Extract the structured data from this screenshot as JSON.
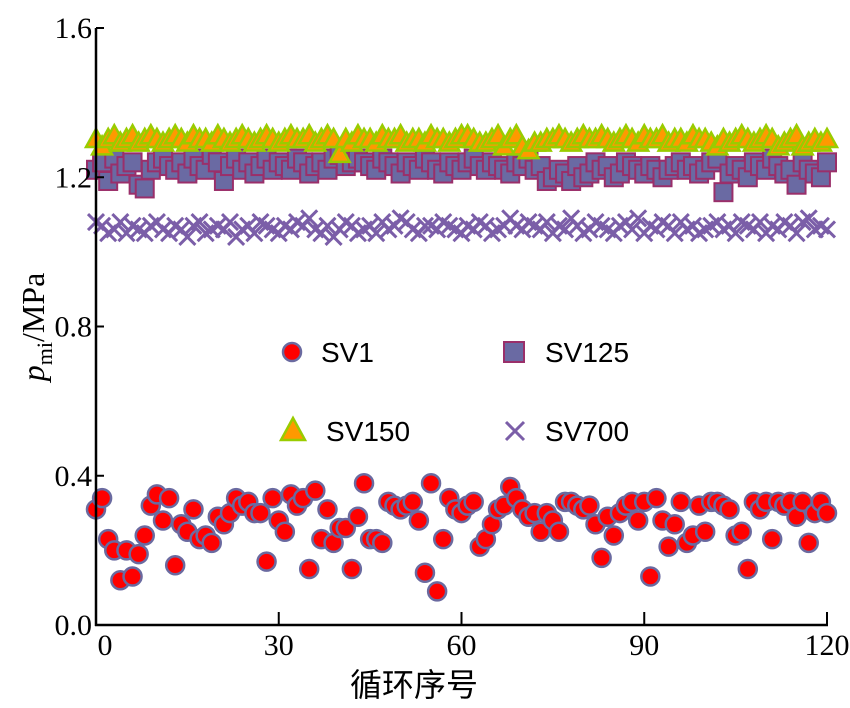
{
  "chart_data": {
    "type": "scatter",
    "title": "",
    "xlabel": "循环序号",
    "ylabel": {
      "symbol": "p",
      "subscript": "mi",
      "unit": "/MPa"
    },
    "xlim": [
      0,
      120
    ],
    "ylim": [
      0.0,
      1.6
    ],
    "xticks": [
      0,
      30,
      60,
      90,
      120
    ],
    "xtick_labels": [
      "0",
      "30",
      "60",
      "90",
      "120"
    ],
    "yticks": [
      0.0,
      0.4,
      0.8,
      1.2,
      1.6
    ],
    "ytick_labels": [
      "0.0",
      "0.4",
      "0.8",
      "1.2",
      "1.6"
    ],
    "grid": false,
    "legend_position": "center",
    "series": [
      {
        "name": "SV1",
        "marker": "circle",
        "fill": "#ff0000",
        "stroke": "#6a6aa0",
        "values": [
          0.31,
          0.34,
          0.23,
          0.2,
          0.12,
          0.2,
          0.13,
          0.19,
          0.24,
          0.32,
          0.35,
          0.28,
          0.34,
          0.16,
          0.27,
          0.25,
          0.31,
          0.23,
          0.24,
          0.22,
          0.29,
          0.27,
          0.3,
          0.34,
          0.32,
          0.33,
          0.3,
          0.3,
          0.17,
          0.34,
          0.28,
          0.25,
          0.35,
          0.32,
          0.34,
          0.15,
          0.36,
          0.23,
          0.31,
          0.22,
          0.26,
          0.26,
          0.15,
          0.29,
          0.38,
          0.23,
          0.23,
          0.22,
          0.33,
          0.32,
          0.31,
          0.32,
          0.33,
          0.28,
          0.14,
          0.38,
          0.09,
          0.23,
          0.34,
          0.31,
          0.3,
          0.32,
          0.33,
          0.21,
          0.23,
          0.27,
          0.31,
          0.32,
          0.37,
          0.34,
          0.31,
          0.29,
          0.3,
          0.25,
          0.3,
          0.28,
          0.25,
          0.33,
          0.33,
          0.32,
          0.31,
          0.32,
          0.27,
          0.18,
          0.29,
          0.24,
          0.3,
          0.32,
          0.33,
          0.28,
          0.33,
          0.13,
          0.34,
          0.28,
          0.21,
          0.27,
          0.33,
          0.22,
          0.24,
          0.32,
          0.25,
          0.33,
          0.33,
          0.32,
          0.31,
          0.24,
          0.25,
          0.15,
          0.33,
          0.31,
          0.33,
          0.23,
          0.33,
          0.32,
          0.33,
          0.29,
          0.33,
          0.22,
          0.3,
          0.33,
          0.3
        ]
      },
      {
        "name": "SV125",
        "marker": "square",
        "fill": "#6a6aa3",
        "stroke": "#9a2f6a",
        "values": [
          1.22,
          1.24,
          1.19,
          1.25,
          1.21,
          1.23,
          1.24,
          1.18,
          1.17,
          1.22,
          1.24,
          1.25,
          1.23,
          1.22,
          1.24,
          1.21,
          1.25,
          1.23,
          1.22,
          1.26,
          1.24,
          1.19,
          1.23,
          1.25,
          1.22,
          1.24,
          1.21,
          1.23,
          1.25,
          1.22,
          1.24,
          1.23,
          1.22,
          1.25,
          1.24,
          1.21,
          1.23,
          1.24,
          1.22,
          1.25,
          1.26,
          1.23,
          1.24,
          1.25,
          1.24,
          1.23,
          1.22,
          1.25,
          1.24,
          1.23,
          1.21,
          1.24,
          1.23,
          1.22,
          1.25,
          1.24,
          1.22,
          1.21,
          1.24,
          1.23,
          1.22,
          1.24,
          1.25,
          1.23,
          1.22,
          1.24,
          1.23,
          1.22,
          1.21,
          1.24,
          1.23,
          1.25,
          1.22,
          1.23,
          1.19,
          1.2,
          1.22,
          1.21,
          1.19,
          1.23,
          1.2,
          1.21,
          1.24,
          1.22,
          1.23,
          1.2,
          1.21,
          1.24,
          1.23,
          1.22,
          1.21,
          1.23,
          1.22,
          1.2,
          1.22,
          1.23,
          1.24,
          1.22,
          1.23,
          1.21,
          1.22,
          1.24,
          1.25,
          1.16,
          1.21,
          1.23,
          1.22,
          1.2,
          1.24,
          1.23,
          1.22,
          1.25,
          1.23,
          1.21,
          1.22,
          1.18,
          1.24,
          1.22,
          1.21,
          1.2,
          1.24
        ]
      },
      {
        "name": "SV150",
        "marker": "triangle",
        "fill": "#ff9900",
        "stroke": "#99cc00",
        "values": [
          1.3,
          1.28,
          1.3,
          1.31,
          1.29,
          1.3,
          1.31,
          1.29,
          1.3,
          1.31,
          1.3,
          1.29,
          1.3,
          1.31,
          1.3,
          1.29,
          1.31,
          1.3,
          1.3,
          1.29,
          1.31,
          1.3,
          1.29,
          1.3,
          1.31,
          1.3,
          1.29,
          1.3,
          1.31,
          1.3,
          1.29,
          1.3,
          1.31,
          1.3,
          1.3,
          1.31,
          1.29,
          1.3,
          1.31,
          1.3,
          1.26,
          1.3,
          1.29,
          1.31,
          1.3,
          1.3,
          1.29,
          1.31,
          1.3,
          1.3,
          1.31,
          1.29,
          1.3,
          1.3,
          1.29,
          1.31,
          1.3,
          1.3,
          1.29,
          1.3,
          1.31,
          1.31,
          1.3,
          1.29,
          1.29,
          1.3,
          1.31,
          1.28,
          1.3,
          1.31,
          1.28,
          1.27,
          1.29,
          1.29,
          1.3,
          1.3,
          1.31,
          1.3,
          1.29,
          1.3,
          1.31,
          1.3,
          1.3,
          1.31,
          1.3,
          1.29,
          1.3,
          1.31,
          1.3,
          1.29,
          1.31,
          1.3,
          1.3,
          1.31,
          1.29,
          1.3,
          1.3,
          1.29,
          1.31,
          1.3,
          1.3,
          1.29,
          1.28,
          1.3,
          1.29,
          1.3,
          1.31,
          1.3,
          1.29,
          1.3,
          1.31,
          1.3,
          1.28,
          1.29,
          1.3,
          1.31,
          1.28,
          1.29,
          1.3,
          1.29,
          1.3
        ]
      },
      {
        "name": "SV700",
        "marker": "x",
        "fill": "none",
        "stroke": "#7b5ea8",
        "values": [
          1.08,
          1.07,
          1.05,
          1.06,
          1.08,
          1.05,
          1.07,
          1.06,
          1.05,
          1.07,
          1.08,
          1.06,
          1.05,
          1.07,
          1.06,
          1.04,
          1.07,
          1.08,
          1.05,
          1.06,
          1.07,
          1.06,
          1.08,
          1.04,
          1.06,
          1.07,
          1.05,
          1.08,
          1.07,
          1.06,
          1.05,
          1.07,
          1.06,
          1.08,
          1.07,
          1.09,
          1.06,
          1.05,
          1.07,
          1.04,
          1.06,
          1.08,
          1.07,
          1.05,
          1.06,
          1.07,
          1.05,
          1.08,
          1.06,
          1.07,
          1.09,
          1.08,
          1.06,
          1.05,
          1.07,
          1.07,
          1.06,
          1.08,
          1.07,
          1.06,
          1.05,
          1.07,
          1.06,
          1.08,
          1.07,
          1.05,
          1.06,
          1.07,
          1.09,
          1.07,
          1.06,
          1.08,
          1.07,
          1.06,
          1.08,
          1.05,
          1.07,
          1.06,
          1.09,
          1.07,
          1.05,
          1.06,
          1.08,
          1.07,
          1.06,
          1.05,
          1.07,
          1.08,
          1.06,
          1.09,
          1.05,
          1.07,
          1.06,
          1.08,
          1.07,
          1.05,
          1.08,
          1.06,
          1.07,
          1.05,
          1.06,
          1.07,
          1.08,
          1.06,
          1.07,
          1.05,
          1.08,
          1.07,
          1.06,
          1.08,
          1.05,
          1.07,
          1.06,
          1.08,
          1.07,
          1.05,
          1.08,
          1.09,
          1.06,
          1.07,
          1.06
        ]
      }
    ]
  }
}
